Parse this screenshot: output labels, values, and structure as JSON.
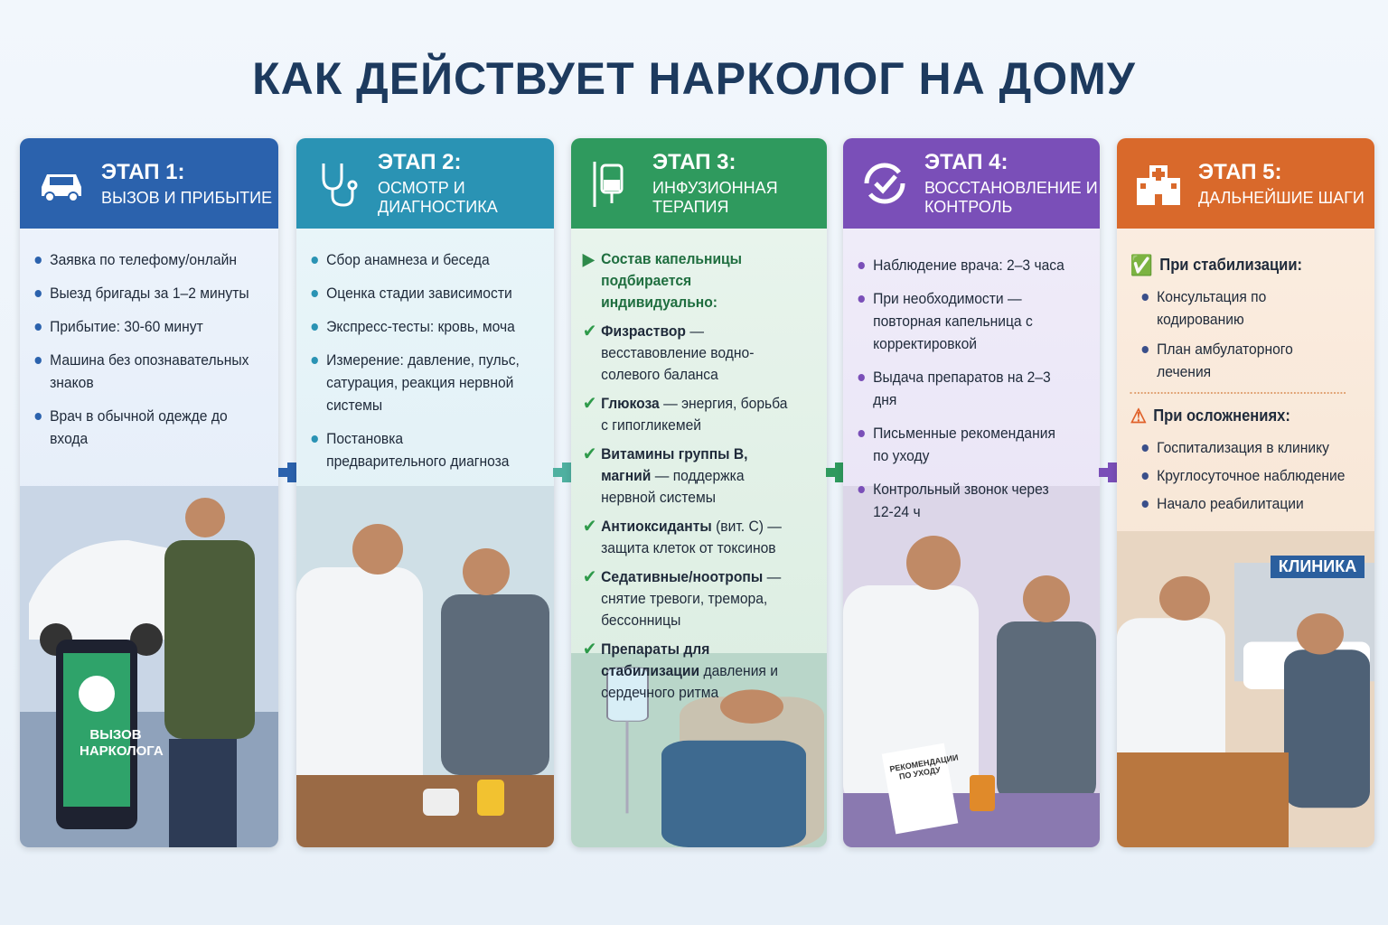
{
  "title": "КАК ДЕЙСТВУЕТ НАРКОЛОГ НА ДОМУ",
  "colors": {
    "stage1": "#2b62ad",
    "stage2": "#2a93b4",
    "stage3": "#2f9a5e",
    "stage4": "#7a4fb8",
    "stage5": "#d9692b"
  },
  "stages": [
    {
      "step": "ЭТАП 1:",
      "name": "ВЫЗОВ И ПРИБЫТИЕ",
      "icon": "car-icon",
      "items": [
        "Заявка по телефому/онлайн",
        "Выезд бригады за 1–2 минуты",
        "Прибытие: 30-60 минут",
        "Машина без опознавательных знаков",
        "Врач в обычной одежде до входа"
      ],
      "scene_label": "ВЫЗОВ НАРКОЛОГА"
    },
    {
      "step": "ЭТАП 2:",
      "name": "ОСМОТР И ДИАГНОСТИКА",
      "icon": "stethoscope-icon",
      "items": [
        "Сбор анамнеза и беседа",
        "Оценка стадии зависимости",
        "Экспресс-тесты: кровь, моча",
        "Измерение: давление, пульс, сатурация, реакция нервной системы",
        "Постановка предварительного диагноза"
      ]
    },
    {
      "step": "ЭТАП 3:",
      "name": "ИНФУЗИОННАЯ ТЕРАПИЯ",
      "icon": "iv-drip-icon",
      "intro": "Состав капельницы подбирается индивидуально:",
      "items": [
        {
          "b": "Физраствор",
          "t": " — весставовление водно-солевого баланса"
        },
        {
          "b": "Глюкоза",
          "t": " — энергия, борьба с гипогликемей"
        },
        {
          "b": "Витамины группы В, магний",
          "t": " — поддержка нервной системы"
        },
        {
          "b": "Антиоксиданты",
          "t": " (вит. С) — защита клеток от токсинов"
        },
        {
          "b": "Седативные/ноотропы",
          "t": " — снятие тревоги, тремора, бессонницы"
        },
        {
          "b": "Препараты для стабилизации",
          "t": " давления и сердечного ритма"
        }
      ]
    },
    {
      "step": "ЭТАП 4:",
      "name": "ВОССТАНОВЛЕНИЕ И КОНТРОЛЬ",
      "icon": "refresh-check-icon",
      "items": [
        "Наблюдение врача: 2–3 часа",
        "При необходимости — повторная капельница с корректировкой",
        "Выдача препаратов на 2–3 дня",
        "Письменные рекомендания по уходу",
        "Контрольный звонок через 12-24 ч"
      ],
      "scene_label": "РЕКОМЕНДАЦИИ ПО УХОДУ"
    },
    {
      "step": "ЭТАП 5:",
      "name": "ДАЛЬНЕЙШИЕ ШАГИ",
      "icon": "hospital-icon",
      "stable_title": "При стабилизации:",
      "stable_items": [
        "Консультация по кодированию",
        "План амбулаторного лечения"
      ],
      "compl_title": "При осложнениях:",
      "compl_items": [
        "Госпитализация в клинику",
        "Круглосуточное наблюдение",
        "Начало реабилитации"
      ],
      "scene_label": "КЛИНИКА"
    }
  ]
}
